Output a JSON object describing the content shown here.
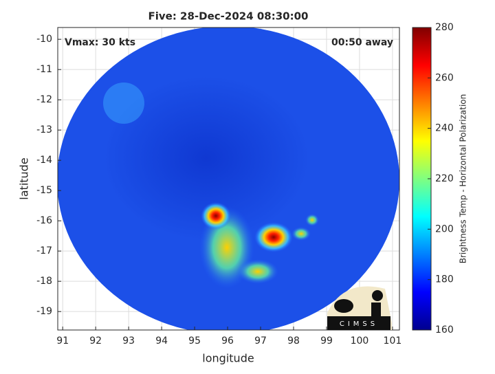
{
  "chart_data": {
    "type": "image-map",
    "title": "Five: 28-Dec-2024 08:30:00",
    "xlabel": "longitude",
    "ylabel": "latitude",
    "annotations": [
      "Vmax: 30 kts",
      "00:50 away"
    ],
    "xlim": [
      90.85,
      101.21
    ],
    "xticks": [
      91,
      92,
      93,
      94,
      95,
      96,
      97,
      98,
      99,
      100,
      101
    ],
    "ylim": [
      -19.61,
      -9.61
    ],
    "yticks": [
      -10,
      -11,
      -12,
      -13,
      -14,
      -15,
      -16,
      -17,
      -18,
      -19
    ],
    "grid": true,
    "colorbar": {
      "label": "Brightness Temp - Horizontal Polarization",
      "colormap": "jet",
      "lim": [
        160,
        280
      ],
      "ticks": [
        160,
        180,
        200,
        220,
        240,
        260,
        280
      ]
    },
    "logo": {
      "text": "CIMSS"
    }
  }
}
